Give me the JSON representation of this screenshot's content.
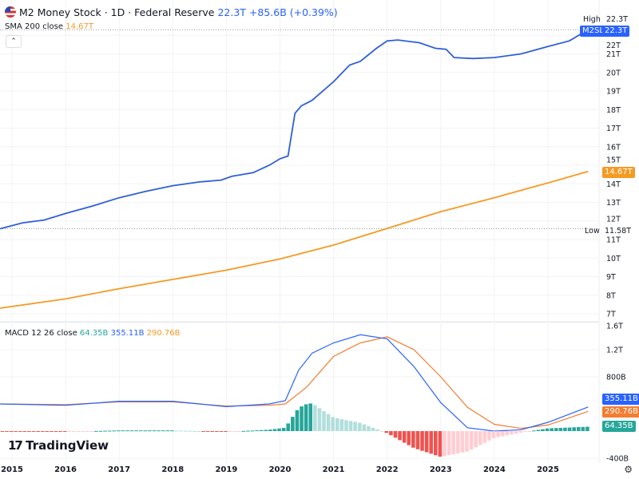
{
  "header": {
    "icon": "us-flag-icon",
    "title": "M2 Money Stock · 1D · Federal Reserve",
    "value": "22.3T",
    "change": "+85.6B (+0.39%)"
  },
  "sma_legend": {
    "label": "SMA 200 close",
    "value": "14.67T"
  },
  "macd_legend": {
    "label": "MACD 12 26 close",
    "hist": "64.35B",
    "macd": "355.11B",
    "signal": "290.76B"
  },
  "price_axis": {
    "ticks": [
      "22T",
      "21T",
      "20T",
      "19T",
      "18T",
      "17T",
      "16T",
      "15T",
      "14T",
      "13T",
      "12T",
      "11T",
      "10T",
      "9T",
      "8T",
      "7T"
    ],
    "high_label": "High",
    "high_value": "22.3T",
    "low_label": "Low",
    "low_value": "11.58T",
    "symbol": "M2SL",
    "last": "22.3T",
    "sma_last": "14.67T"
  },
  "macd_axis": {
    "ticks": [
      "1.6T",
      "1.2T",
      "800B",
      "-400B"
    ],
    "macd_last": "355.11B",
    "signal_last": "290.76B",
    "hist_last": "64.35B"
  },
  "time_axis": [
    "2015",
    "2016",
    "2017",
    "2018",
    "2019",
    "2020",
    "2021",
    "2022",
    "2023",
    "2024",
    "2025"
  ],
  "branding": {
    "logo": "TradingView"
  },
  "colors": {
    "m2": "#2f5fd8",
    "sma": "#f59a23",
    "macd": "#2962ff",
    "signal": "#f57c30",
    "hist_pos": "#26a69a",
    "hist_pos_light": "#b2dfdb",
    "hist_neg": "#ef5350",
    "hist_neg_light": "#ffcdd2"
  },
  "chart_data": {
    "type": "line",
    "m2_trillions": [
      [
        2014.78,
        11.58
      ],
      [
        2015.2,
        11.9
      ],
      [
        2015.6,
        12.05
      ],
      [
        2016,
        12.4
      ],
      [
        2016.5,
        12.8
      ],
      [
        2017,
        13.25
      ],
      [
        2017.5,
        13.6
      ],
      [
        2018,
        13.9
      ],
      [
        2018.5,
        14.1
      ],
      [
        2018.9,
        14.2
      ],
      [
        2019.1,
        14.4
      ],
      [
        2019.5,
        14.6
      ],
      [
        2019.8,
        15.0
      ],
      [
        2020.0,
        15.35
      ],
      [
        2020.15,
        15.5
      ],
      [
        2020.28,
        17.8
      ],
      [
        2020.4,
        18.2
      ],
      [
        2020.6,
        18.5
      ],
      [
        2021.0,
        19.5
      ],
      [
        2021.3,
        20.4
      ],
      [
        2021.5,
        20.6
      ],
      [
        2021.8,
        21.3
      ],
      [
        2022.0,
        21.7
      ],
      [
        2022.2,
        21.75
      ],
      [
        2022.6,
        21.6
      ],
      [
        2022.9,
        21.3
      ],
      [
        2023.1,
        21.25
      ],
      [
        2023.25,
        20.8
      ],
      [
        2023.6,
        20.75
      ],
      [
        2024.0,
        20.8
      ],
      [
        2024.5,
        21.0
      ],
      [
        2025.0,
        21.4
      ],
      [
        2025.4,
        21.7
      ],
      [
        2025.75,
        22.3
      ]
    ],
    "sma200_trillions": [
      [
        2014.78,
        7.3
      ],
      [
        2016,
        7.8
      ],
      [
        2017,
        8.35
      ],
      [
        2018,
        8.85
      ],
      [
        2019,
        9.35
      ],
      [
        2020,
        9.95
      ],
      [
        2021,
        10.7
      ],
      [
        2022,
        11.6
      ],
      [
        2023,
        12.5
      ],
      [
        2024,
        13.25
      ],
      [
        2025,
        14.05
      ],
      [
        2025.75,
        14.67
      ]
    ],
    "macd_billions": [
      [
        2014.78,
        400
      ],
      [
        2016,
        380
      ],
      [
        2017,
        440
      ],
      [
        2018,
        440
      ],
      [
        2019,
        360
      ],
      [
        2019.8,
        400
      ],
      [
        2020.1,
        450
      ],
      [
        2020.35,
        900
      ],
      [
        2020.6,
        1150
      ],
      [
        2021.0,
        1300
      ],
      [
        2021.5,
        1420
      ],
      [
        2022.0,
        1360
      ],
      [
        2022.5,
        950
      ],
      [
        2023.0,
        420
      ],
      [
        2023.5,
        50
      ],
      [
        2024.0,
        0
      ],
      [
        2024.5,
        20
      ],
      [
        2025.0,
        130
      ],
      [
        2025.75,
        355.11
      ]
    ],
    "signal_billions": [
      [
        2014.78,
        400
      ],
      [
        2016,
        390
      ],
      [
        2017,
        430
      ],
      [
        2018,
        430
      ],
      [
        2019,
        370
      ],
      [
        2019.8,
        380
      ],
      [
        2020.1,
        400
      ],
      [
        2020.5,
        650
      ],
      [
        2021.0,
        1100
      ],
      [
        2021.5,
        1300
      ],
      [
        2022.0,
        1390
      ],
      [
        2022.5,
        1200
      ],
      [
        2023.0,
        800
      ],
      [
        2023.5,
        350
      ],
      [
        2024.0,
        100
      ],
      [
        2024.5,
        40
      ],
      [
        2025.0,
        90
      ],
      [
        2025.75,
        290.76
      ]
    ],
    "price_range_trillions": [
      7,
      22.3
    ],
    "macd_range_billions": [
      -400,
      1600
    ],
    "grid": true
  }
}
